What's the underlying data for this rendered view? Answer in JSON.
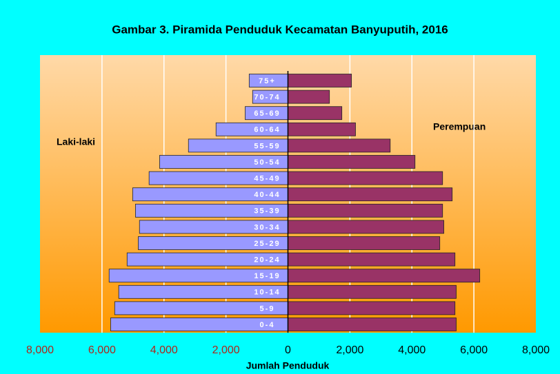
{
  "chart_data": {
    "type": "pyramid",
    "title": "Gambar 3. Piramida Penduduk Kecamatan Banyuputih, 2016",
    "x_label": "Jumlah Penduduk",
    "categories": [
      "0-4",
      "5-9",
      "10-14",
      "15-19",
      "20-24",
      "25-29",
      "30-34",
      "35-39",
      "40-44",
      "45-49",
      "50-54",
      "55-59",
      "60-64",
      "65-69",
      "70-74",
      "75+"
    ],
    "series": [
      {
        "name": "Laki-laki",
        "color": "#9999ff",
        "values": [
          -5720,
          -5590,
          -5460,
          -5770,
          -5190,
          -4830,
          -4790,
          -4920,
          -5010,
          -4480,
          -4140,
          -3210,
          -2320,
          -1380,
          -1140,
          -1250
        ]
      },
      {
        "name": "Perempuan",
        "color": "#993366",
        "values": [
          5430,
          5390,
          5430,
          6190,
          5390,
          4900,
          5030,
          4990,
          5300,
          4990,
          4100,
          3300,
          2180,
          1740,
          1340,
          2050
        ]
      }
    ],
    "xlim": [
      -8000,
      8000
    ],
    "xticks": [
      {
        "value": -8000,
        "label": "8,000"
      },
      {
        "value": -6000,
        "label": "6,000"
      },
      {
        "value": -4000,
        "label": "4,000"
      },
      {
        "value": -2000,
        "label": "2,000"
      },
      0,
      {
        "value": 2000,
        "label": "2,000"
      },
      {
        "value": 4000,
        "label": "4,000"
      },
      {
        "value": 6000,
        "label": "6,000"
      },
      {
        "value": 8000,
        "label": "8,000"
      }
    ],
    "grid": true
  }
}
